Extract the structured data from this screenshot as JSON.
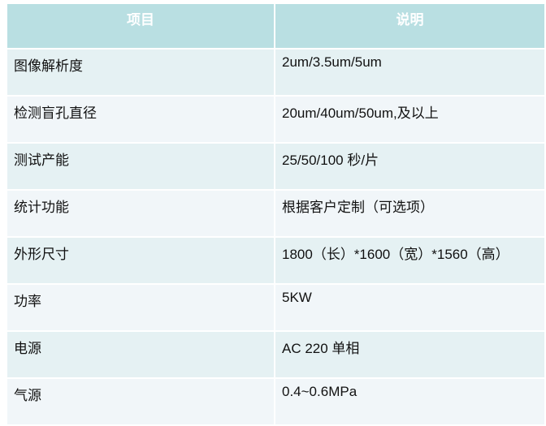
{
  "header": {
    "col1": "项目",
    "col2": "说明"
  },
  "colors": {
    "header": "#b9dfe2",
    "row_odd": "#e5f1f3",
    "row_even": "#f1f6f9"
  },
  "rows": [
    {
      "item": "图像解析度",
      "desc": "2um/3.5um/5um"
    },
    {
      "item": "检测盲孔直径",
      "desc": "20um/40um/50um,及以上"
    },
    {
      "item": "测试产能",
      "desc": "25/50/100 秒/片"
    },
    {
      "item": "统计功能",
      "desc": "根据客户定制（可选项）"
    },
    {
      "item": "外形尺寸",
      "desc": "1800（长）*1600（宽）*1560（高）"
    },
    {
      "item": "功率",
      "desc": "5KW"
    },
    {
      "item": "电源",
      "desc": "AC 220 单相"
    },
    {
      "item": "气源",
      "desc": "0.4~0.6MPa"
    }
  ]
}
